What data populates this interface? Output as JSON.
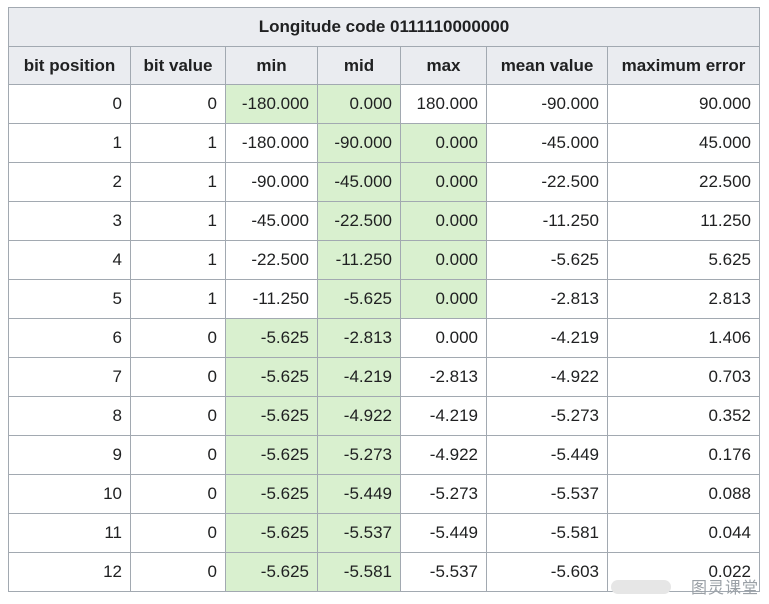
{
  "table": {
    "title": "Longitude code 0111110000000",
    "columns": [
      "bit position",
      "bit value",
      "min",
      "mid",
      "max",
      "mean value",
      "maximum error"
    ],
    "rows": [
      {
        "cells": [
          "0",
          "0",
          "-180.000",
          "0.000",
          "180.000",
          "-90.000",
          "90.000"
        ],
        "highlight": [
          2,
          3
        ]
      },
      {
        "cells": [
          "1",
          "1",
          "-180.000",
          "-90.000",
          "0.000",
          "-45.000",
          "45.000"
        ],
        "highlight": [
          3,
          4
        ]
      },
      {
        "cells": [
          "2",
          "1",
          "-90.000",
          "-45.000",
          "0.000",
          "-22.500",
          "22.500"
        ],
        "highlight": [
          3,
          4
        ]
      },
      {
        "cells": [
          "3",
          "1",
          "-45.000",
          "-22.500",
          "0.000",
          "-11.250",
          "11.250"
        ],
        "highlight": [
          3,
          4
        ]
      },
      {
        "cells": [
          "4",
          "1",
          "-22.500",
          "-11.250",
          "0.000",
          "-5.625",
          "5.625"
        ],
        "highlight": [
          3,
          4
        ]
      },
      {
        "cells": [
          "5",
          "1",
          "-11.250",
          "-5.625",
          "0.000",
          "-2.813",
          "2.813"
        ],
        "highlight": [
          3,
          4
        ]
      },
      {
        "cells": [
          "6",
          "0",
          "-5.625",
          "-2.813",
          "0.000",
          "-4.219",
          "1.406"
        ],
        "highlight": [
          2,
          3
        ]
      },
      {
        "cells": [
          "7",
          "0",
          "-5.625",
          "-4.219",
          "-2.813",
          "-4.922",
          "0.703"
        ],
        "highlight": [
          2,
          3
        ]
      },
      {
        "cells": [
          "8",
          "0",
          "-5.625",
          "-4.922",
          "-4.219",
          "-5.273",
          "0.352"
        ],
        "highlight": [
          2,
          3
        ]
      },
      {
        "cells": [
          "9",
          "0",
          "-5.625",
          "-5.273",
          "-4.922",
          "-5.449",
          "0.176"
        ],
        "highlight": [
          2,
          3
        ]
      },
      {
        "cells": [
          "10",
          "0",
          "-5.625",
          "-5.449",
          "-5.273",
          "-5.537",
          "0.088"
        ],
        "highlight": [
          2,
          3
        ]
      },
      {
        "cells": [
          "11",
          "0",
          "-5.625",
          "-5.537",
          "-5.449",
          "-5.581",
          "0.044"
        ],
        "highlight": [
          2,
          3
        ]
      },
      {
        "cells": [
          "12",
          "0",
          "-5.625",
          "-5.581",
          "-5.537",
          "-5.603",
          "0.022"
        ],
        "highlight": [
          2,
          3
        ]
      }
    ]
  },
  "colors": {
    "header_bg": "#eaecf0",
    "border": "#a2a9b1",
    "highlight": "#d9f0cf"
  },
  "watermark": "图灵课堂"
}
